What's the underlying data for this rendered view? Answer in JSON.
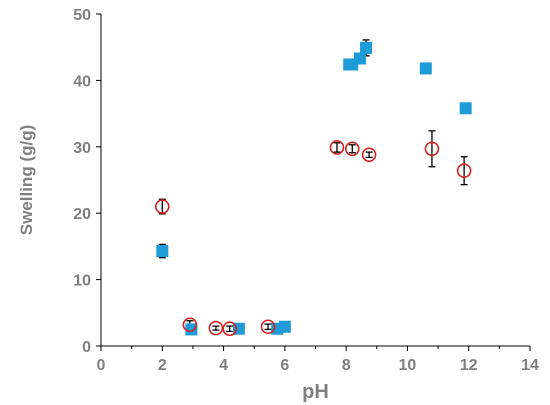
{
  "chart_data": {
    "type": "scatter",
    "xlabel": "pH",
    "ylabel": "Swelling (g/g)",
    "xlim": [
      0,
      14
    ],
    "ylim": [
      0,
      50
    ],
    "xticks": [
      0,
      2,
      4,
      6,
      8,
      10,
      12,
      14
    ],
    "yticks": [
      0,
      10,
      20,
      30,
      40,
      50
    ],
    "grid": false,
    "legend": "none",
    "series": [
      {
        "marker": "square",
        "color": "#1f9bd7",
        "points": [
          {
            "x": 2.0,
            "y": 14.3,
            "err": 1.0
          },
          {
            "x": 2.95,
            "y": 2.5,
            "err": 0
          },
          {
            "x": 4.5,
            "y": 2.6,
            "err": 0
          },
          {
            "x": 5.75,
            "y": 2.6,
            "err": 0
          },
          {
            "x": 6.0,
            "y": 2.9,
            "err": 0
          },
          {
            "x": 8.1,
            "y": 42.4,
            "err": 0.6
          },
          {
            "x": 8.2,
            "y": 42.4,
            "err": 0
          },
          {
            "x": 8.45,
            "y": 43.3,
            "err": 0.6
          },
          {
            "x": 8.65,
            "y": 44.9,
            "err": 1.2
          },
          {
            "x": 10.6,
            "y": 41.8,
            "err": 0
          },
          {
            "x": 11.9,
            "y": 35.8,
            "err": 0
          }
        ]
      },
      {
        "marker": "circle-open",
        "color": "#d62020",
        "points": [
          {
            "x": 2.0,
            "y": 21.0,
            "err": 1.1
          },
          {
            "x": 2.9,
            "y": 3.2,
            "err": 0.6
          },
          {
            "x": 3.75,
            "y": 2.7,
            "err": 0.3
          },
          {
            "x": 4.2,
            "y": 2.6,
            "err": 0.4
          },
          {
            "x": 5.45,
            "y": 2.9,
            "err": 0.4
          },
          {
            "x": 7.7,
            "y": 29.9,
            "err": 0.7
          },
          {
            "x": 8.2,
            "y": 29.7,
            "err": 0.6
          },
          {
            "x": 8.75,
            "y": 28.8,
            "err": 0.4
          },
          {
            "x": 10.8,
            "y": 29.7,
            "err": 2.7
          },
          {
            "x": 11.85,
            "y": 26.4,
            "err": 2.1
          }
        ]
      }
    ]
  }
}
